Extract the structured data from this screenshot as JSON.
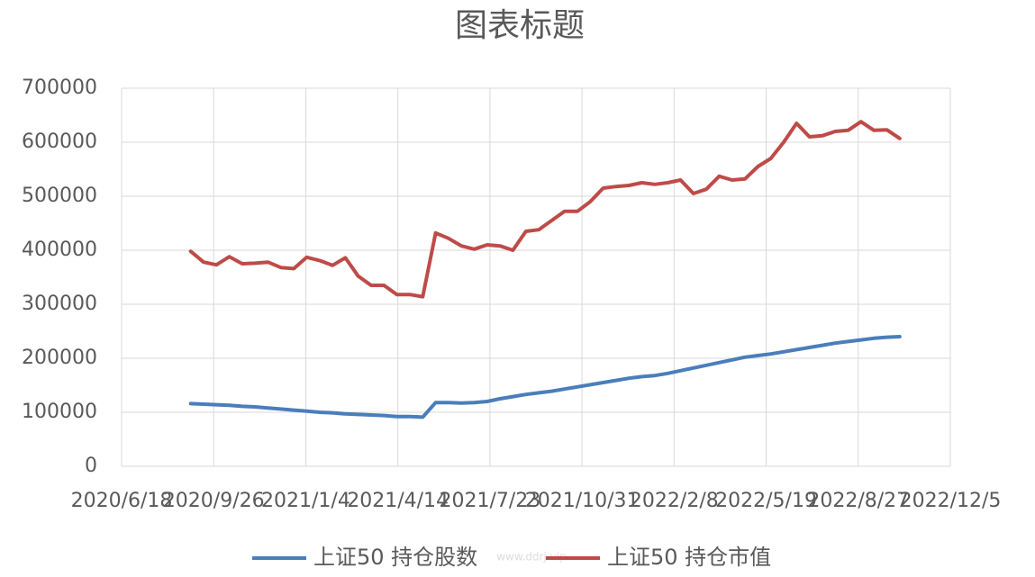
{
  "chart_data": {
    "type": "line",
    "title": "图表标题",
    "watermark": "www.ddrj.vip",
    "x": [
      "2020/9/1",
      "2020/9/15",
      "2020/9/29",
      "2020/10/13",
      "2020/10/27",
      "2020/11/10",
      "2020/11/24",
      "2020/12/8",
      "2020/12/22",
      "2021/1/5",
      "2021/1/19",
      "2021/2/2",
      "2021/2/16",
      "2021/3/2",
      "2021/3/16",
      "2021/3/30",
      "2021/4/13",
      "2021/4/27",
      "2021/5/11",
      "2021/5/25",
      "2021/6/8",
      "2021/6/22",
      "2021/7/6",
      "2021/7/20",
      "2021/8/3",
      "2021/8/17",
      "2021/8/31",
      "2021/9/14",
      "2021/9/28",
      "2021/10/12",
      "2021/10/26",
      "2021/11/9",
      "2021/11/23",
      "2021/12/7",
      "2021/12/21",
      "2022/1/4",
      "2022/1/18",
      "2022/2/1",
      "2022/2/15",
      "2022/3/1",
      "2022/3/15",
      "2022/3/29",
      "2022/4/12",
      "2022/4/26",
      "2022/5/10",
      "2022/5/24",
      "2022/6/7",
      "2022/6/21",
      "2022/7/5",
      "2022/7/19",
      "2022/8/2",
      "2022/8/16",
      "2022/8/30",
      "2022/9/13",
      "2022/9/27",
      "2022/10/11"
    ],
    "series": [
      {
        "name": "上证50 持仓股数",
        "color": "#4a7ebb",
        "values": [
          116000,
          115000,
          114000,
          113000,
          111000,
          110000,
          108000,
          106000,
          104000,
          102000,
          100000,
          99000,
          97000,
          96000,
          95000,
          94000,
          92000,
          92000,
          91000,
          118000,
          118000,
          117000,
          118000,
          120000,
          125000,
          129000,
          133000,
          136000,
          139000,
          143000,
          147000,
          151000,
          155000,
          159000,
          163000,
          166000,
          168000,
          172000,
          177000,
          182000,
          187000,
          192000,
          197000,
          202000,
          205000,
          208000,
          212000,
          216000,
          220000,
          224000,
          228000,
          231000,
          234000,
          237000,
          239000,
          240000
        ]
      },
      {
        "name": "上证50 持仓市值",
        "color": "#be4b48",
        "values": [
          398000,
          378000,
          373000,
          388000,
          375000,
          376000,
          378000,
          368000,
          366000,
          387000,
          381000,
          372000,
          386000,
          352000,
          335000,
          335000,
          318000,
          318000,
          314000,
          432000,
          422000,
          408000,
          402000,
          410000,
          408000,
          400000,
          435000,
          438000,
          455000,
          472000,
          472000,
          490000,
          515000,
          518000,
          520000,
          525000,
          522000,
          525000,
          530000,
          505000,
          513000,
          537000,
          530000,
          532000,
          555000,
          570000,
          600000,
          635000,
          610000,
          612000,
          620000,
          622000,
          638000,
          622000,
          623000,
          607000
        ]
      }
    ],
    "xlim": [
      "2020/6/18",
      "2022/12/5"
    ],
    "xticks": [
      "2020/6/18",
      "2020/9/26",
      "2021/1/4",
      "2021/4/14",
      "2021/7/23",
      "2021/10/31",
      "2022/2/8",
      "2022/5/19",
      "2022/8/27",
      "2022/12/5"
    ],
    "ylim": [
      0,
      700000
    ],
    "yticks": [
      0,
      100000,
      200000,
      300000,
      400000,
      500000,
      600000,
      700000
    ],
    "grid": true,
    "legend": "bottom"
  }
}
